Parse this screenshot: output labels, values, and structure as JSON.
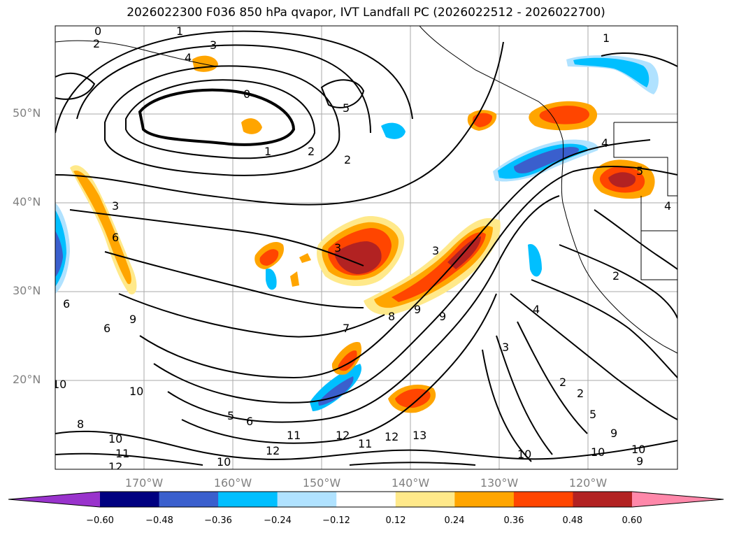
{
  "title": "2026022300 F036 850 hPa qvapor, IVT Landfall PC (2026022512 - 2026022700)",
  "lat_labels": [
    "50°N",
    "40°N",
    "30°N",
    "20°N"
  ],
  "lon_labels": [
    "170°W",
    "160°W",
    "150°W",
    "140°W",
    "130°W",
    "120°W"
  ],
  "colorbar": {
    "ticks": [
      "−0.60",
      "−0.48",
      "−0.36",
      "−0.24",
      "−0.12",
      "0.12",
      "0.24",
      "0.36",
      "0.48",
      "0.60"
    ],
    "colors": [
      "#9933cc",
      "#000080",
      "#3a5fcd",
      "#00bfff",
      "#b0e2ff",
      "#ffffff",
      "#ffe98a",
      "#ffa500",
      "#ff4500",
      "#b22222",
      "#ff88aa"
    ]
  },
  "contour_labels": [
    "0",
    "1",
    "2",
    "3",
    "4",
    "5",
    "6",
    "7",
    "8",
    "9",
    "10",
    "11",
    "12",
    "13"
  ]
}
